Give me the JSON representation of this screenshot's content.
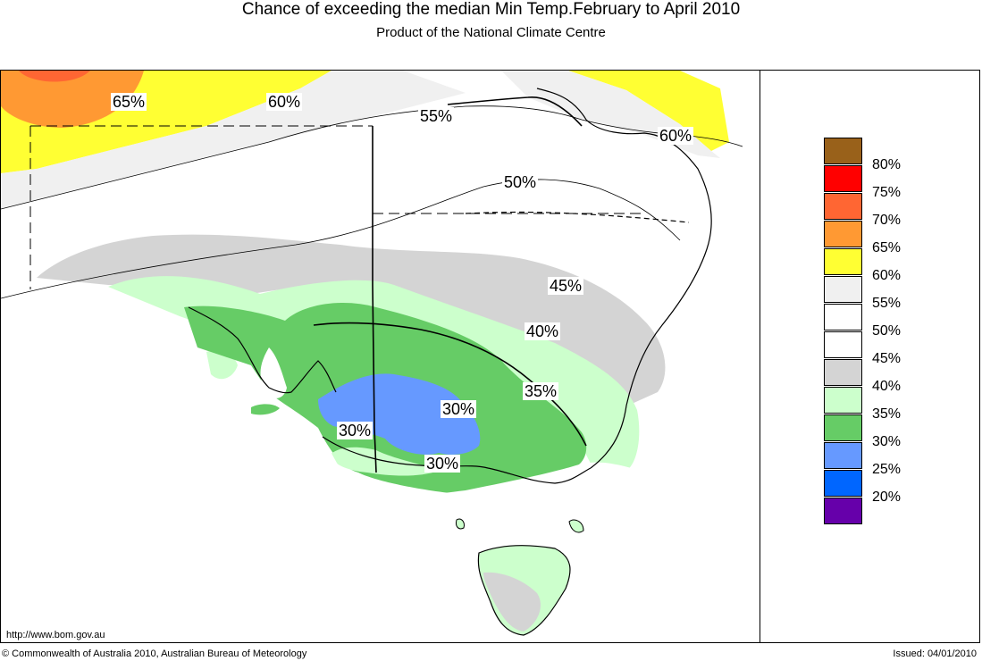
{
  "header": {
    "title": "Chance of exceeding the median Min Temp.February to April 2010",
    "subtitle": "Product of the National Climate Centre"
  },
  "map": {
    "contour_labels": [
      "65%",
      "60%",
      "55%",
      "60%",
      "50%",
      "45%",
      "40%",
      "35%",
      "30%",
      "30%",
      "30%"
    ],
    "url": "http://www.bom.gov.au"
  },
  "legend": {
    "items": [
      {
        "label": "80%",
        "color": "#99611a"
      },
      {
        "label": "75%",
        "color": "#ff0000"
      },
      {
        "label": "70%",
        "color": "#ff6633"
      },
      {
        "label": "65%",
        "color": "#ff9933"
      },
      {
        "label": "60%",
        "color": "#ffff33"
      },
      {
        "label": "55%",
        "color": "#f0f0f0"
      },
      {
        "label": "50%",
        "color": "#ffffff"
      },
      {
        "label": "45%",
        "color": "#ffffff"
      },
      {
        "label": "40%",
        "color": "#d4d4d4"
      },
      {
        "label": "35%",
        "color": "#ccffcc"
      },
      {
        "label": "30%",
        "color": "#66cc66"
      },
      {
        "label": "25%",
        "color": "#6699ff"
      },
      {
        "label": "20%",
        "color": "#0066ff"
      },
      {
        "label": "",
        "color": "#6600aa"
      }
    ]
  },
  "footer": {
    "copyright": "© Commonwealth of Australia 2010, Australian Bureau of Meteorology",
    "issued": "Issued: 04/01/2010"
  }
}
